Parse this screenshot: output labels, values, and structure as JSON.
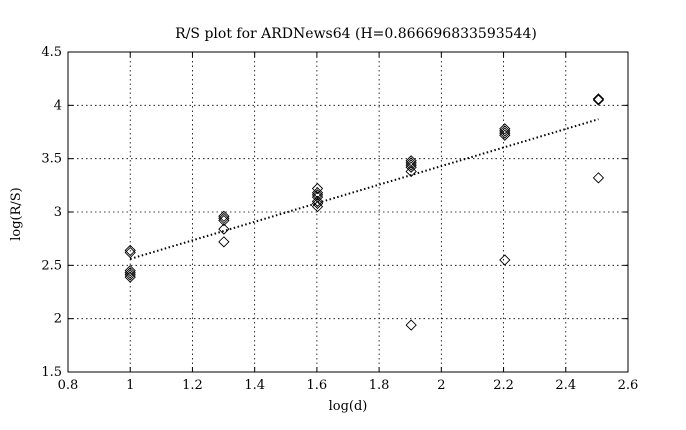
{
  "chart_data": {
    "type": "scatter",
    "title": "R/S plot for ARDNews64 (H=0.866696833593544)",
    "xlabel": "log(d)",
    "ylabel": "log(R/S)",
    "xlim": [
      0.8,
      2.6
    ],
    "ylim": [
      1.5,
      4.5
    ],
    "xticks": [
      "0.8",
      "1",
      "1.2",
      "1.4",
      "1.6",
      "1.8",
      "2",
      "2.2",
      "2.4",
      "2.6"
    ],
    "yticks": [
      "1.5",
      "2",
      "2.5",
      "3",
      "3.5",
      "4",
      "4.5"
    ],
    "grid": true,
    "series": [
      {
        "marker": "diamond",
        "color": "#000000",
        "x": [
          1.0,
          1.0,
          1.0,
          1.0,
          1.0,
          1.0,
          1.301,
          1.301,
          1.301,
          1.301,
          1.301,
          1.602,
          1.602,
          1.602,
          1.602,
          1.602,
          1.602,
          1.602,
          1.903,
          1.903,
          1.903,
          1.903,
          1.903,
          1.903,
          2.204,
          2.204,
          2.204,
          2.204,
          2.204,
          2.505,
          2.505,
          2.505
        ],
        "y": [
          2.64,
          2.62,
          2.45,
          2.43,
          2.41,
          2.39,
          2.96,
          2.94,
          2.92,
          2.84,
          2.72,
          3.22,
          3.18,
          3.16,
          3.14,
          3.1,
          3.08,
          3.05,
          3.48,
          3.46,
          3.44,
          3.42,
          3.38,
          1.94,
          3.78,
          3.76,
          3.74,
          3.72,
          2.55,
          4.06,
          4.05,
          3.32
        ]
      }
    ],
    "fit_line": {
      "style": "dotted",
      "color": "#000000",
      "x": [
        1.0,
        2.505
      ],
      "y": [
        2.56,
        3.87
      ]
    }
  }
}
